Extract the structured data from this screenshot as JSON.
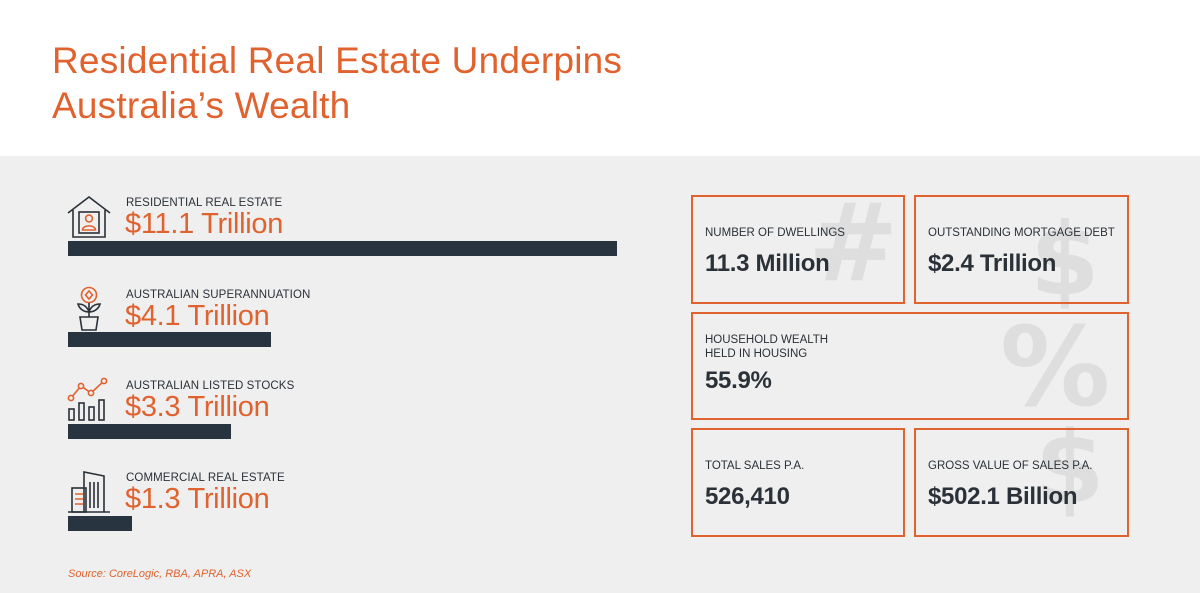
{
  "title_line1": "Residential Real Estate Underpins",
  "title_line2": "Australia’s Wealth",
  "source": "Source: CoreLogic, RBA, APRA, ASX",
  "colors": {
    "accent": "#e0622f",
    "bar": "#283440",
    "panel": "#efefef",
    "text": "#2b3138"
  },
  "chart_data": {
    "type": "bar",
    "orientation": "horizontal",
    "unit": "Trillion AUD",
    "categories": [
      "RESIDENTIAL REAL ESTATE",
      "AUSTRALIAN SUPERANNUATION",
      "AUSTRALIAN LISTED STOCKS",
      "COMMERCIAL REAL ESTATE"
    ],
    "values": [
      11.1,
      4.1,
      3.3,
      1.3
    ],
    "value_labels": [
      "$11.1 Trillion",
      "$4.1 Trillion",
      "$3.3 Trillion",
      "$1.3 Trillion"
    ],
    "icons": [
      "house-person-icon",
      "plant-coin-icon",
      "stocks-chart-icon",
      "office-building-icon"
    ]
  },
  "stats": {
    "dwellings": {
      "label": "NUMBER OF DWELLINGS",
      "value": "11.3 Million"
    },
    "mortgage": {
      "label": "OUTSTANDING MORTGAGE DEBT",
      "value": "$2.4 Trillion"
    },
    "housing_wealth": {
      "label": "HOUSEHOLD WEALTH\nHELD IN HOUSING",
      "value": "55.9%"
    },
    "sales": {
      "label": "TOTAL SALES P.A.",
      "value": "526,410"
    },
    "gross_sales": {
      "label": "GROSS VALUE OF SALES P.A.",
      "value": "$502.1 Billion"
    }
  }
}
